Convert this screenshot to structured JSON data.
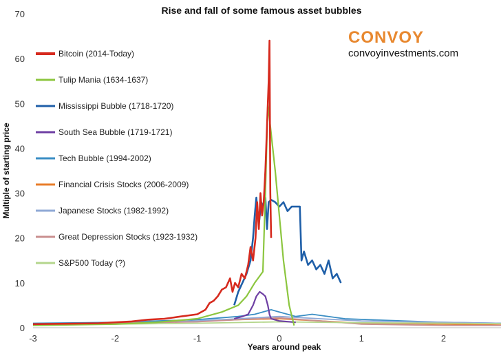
{
  "chart_data": {
    "type": "line",
    "title": "Rise and fall of some famous asset bubbles",
    "xlabel": "Years around peak",
    "ylabel": "Multiple of starting price",
    "xlim": [
      -3,
      2.7
    ],
    "ylim": [
      0,
      70
    ],
    "x_ticks": [
      -3,
      -2,
      -1,
      0,
      1,
      2
    ],
    "y_ticks": [
      0,
      10,
      20,
      30,
      40,
      50,
      60,
      70
    ],
    "grid": false,
    "legend_position": "left",
    "series": [
      {
        "name": "Bitcoin (2014-Today)",
        "color": "#d62a1e",
        "points": [
          [
            -3.0,
            0.8
          ],
          [
            -2.5,
            0.9
          ],
          [
            -2.2,
            1.0
          ],
          [
            -2.0,
            1.2
          ],
          [
            -1.8,
            1.4
          ],
          [
            -1.6,
            1.8
          ],
          [
            -1.4,
            2.0
          ],
          [
            -1.2,
            2.5
          ],
          [
            -1.0,
            3.0
          ],
          [
            -0.9,
            4.0
          ],
          [
            -0.85,
            5.5
          ],
          [
            -0.8,
            6.0
          ],
          [
            -0.75,
            7.0
          ],
          [
            -0.7,
            8.5
          ],
          [
            -0.65,
            9.0
          ],
          [
            -0.6,
            11.0
          ],
          [
            -0.57,
            8.0
          ],
          [
            -0.54,
            10.0
          ],
          [
            -0.5,
            9.0
          ],
          [
            -0.46,
            12.0
          ],
          [
            -0.42,
            11.0
          ],
          [
            -0.38,
            14.0
          ],
          [
            -0.35,
            18.0
          ],
          [
            -0.32,
            15.0
          ],
          [
            -0.29,
            20.0
          ],
          [
            -0.27,
            28.0
          ],
          [
            -0.25,
            22.0
          ],
          [
            -0.23,
            30.0
          ],
          [
            -0.21,
            25.0
          ],
          [
            -0.19,
            28.0
          ],
          [
            -0.17,
            35.0
          ],
          [
            -0.15,
            45.0
          ],
          [
            -0.13,
            55.0
          ],
          [
            -0.12,
            64.0
          ],
          [
            -0.11,
            30.0
          ],
          [
            -0.1,
            20.0
          ]
        ]
      },
      {
        "name": "Tulip Mania (1634-1637)",
        "color": "#8cc63f",
        "points": [
          [
            -3.0,
            0.5
          ],
          [
            -2.0,
            0.8
          ],
          [
            -1.5,
            1.2
          ],
          [
            -1.0,
            2.0
          ],
          [
            -0.7,
            3.5
          ],
          [
            -0.5,
            5.0
          ],
          [
            -0.4,
            7.0
          ],
          [
            -0.3,
            10.0
          ],
          [
            -0.2,
            12.5
          ],
          [
            -0.17,
            30.0
          ],
          [
            -0.14,
            50.0
          ],
          [
            -0.05,
            35.0
          ],
          [
            0.05,
            15.0
          ],
          [
            0.12,
            5.0
          ],
          [
            0.18,
            0.5
          ]
        ]
      },
      {
        "name": "Mississippi Bubble (1718-1720)",
        "color": "#1f5fa8",
        "points": [
          [
            -0.55,
            5.0
          ],
          [
            -0.5,
            8.0
          ],
          [
            -0.45,
            10.0
          ],
          [
            -0.4,
            12.0
          ],
          [
            -0.35,
            15.0
          ],
          [
            -0.32,
            20.0
          ],
          [
            -0.3,
            25.0
          ],
          [
            -0.28,
            29.0
          ],
          [
            -0.25,
            23.0
          ],
          [
            -0.22,
            28.0
          ],
          [
            -0.2,
            27.0
          ],
          [
            -0.17,
            29.0
          ],
          [
            -0.15,
            22.0
          ],
          [
            -0.13,
            28.0
          ],
          [
            -0.1,
            28.5
          ],
          [
            -0.05,
            28.0
          ],
          [
            0.0,
            27.0
          ],
          [
            0.05,
            28.0
          ],
          [
            0.1,
            26.0
          ],
          [
            0.15,
            27.0
          ],
          [
            0.2,
            27.0
          ],
          [
            0.25,
            27.0
          ],
          [
            0.27,
            15.0
          ],
          [
            0.3,
            17.0
          ],
          [
            0.35,
            14.0
          ],
          [
            0.4,
            15.0
          ],
          [
            0.45,
            13.0
          ],
          [
            0.5,
            14.0
          ],
          [
            0.55,
            12.0
          ],
          [
            0.6,
            15.0
          ],
          [
            0.65,
            11.0
          ],
          [
            0.7,
            12.0
          ],
          [
            0.75,
            10.0
          ]
        ]
      },
      {
        "name": "South Sea Bubble (1719-1721)",
        "color": "#6e3fa3",
        "points": [
          [
            -0.55,
            2.0
          ],
          [
            -0.45,
            2.5
          ],
          [
            -0.38,
            3.0
          ],
          [
            -0.32,
            5.0
          ],
          [
            -0.28,
            7.0
          ],
          [
            -0.24,
            8.0
          ],
          [
            -0.2,
            7.5
          ],
          [
            -0.17,
            7.0
          ],
          [
            -0.14,
            5.0
          ],
          [
            -0.12,
            3.0
          ],
          [
            -0.1,
            2.0
          ],
          [
            0.0,
            1.5
          ],
          [
            0.2,
            1.2
          ]
        ]
      },
      {
        "name": "Tech Bubble (1994-2002)",
        "color": "#3a8ec4",
        "points": [
          [
            -3.0,
            1.0
          ],
          [
            -2.0,
            1.2
          ],
          [
            -1.0,
            1.8
          ],
          [
            -0.5,
            2.5
          ],
          [
            -0.3,
            3.0
          ],
          [
            -0.1,
            4.0
          ],
          [
            0.0,
            3.5
          ],
          [
            0.2,
            2.5
          ],
          [
            0.4,
            3.0
          ],
          [
            0.8,
            2.0
          ],
          [
            1.5,
            1.5
          ],
          [
            2.0,
            1.2
          ],
          [
            2.7,
            1.0
          ]
        ]
      },
      {
        "name": "Financial Crisis Stocks (2006-2009)",
        "color": "#e87d2a",
        "points": [
          [
            -3.0,
            0.8
          ],
          [
            -2.0,
            1.0
          ],
          [
            -1.0,
            1.4
          ],
          [
            -0.5,
            1.8
          ],
          [
            0.0,
            2.0
          ],
          [
            0.5,
            1.5
          ],
          [
            1.0,
            1.0
          ],
          [
            2.0,
            0.8
          ],
          [
            2.7,
            0.6
          ]
        ]
      },
      {
        "name": "Japanese Stocks (1982-1992)",
        "color": "#8fa9d6",
        "points": [
          [
            -3.0,
            0.7
          ],
          [
            -2.0,
            1.0
          ],
          [
            -1.0,
            1.5
          ],
          [
            -0.5,
            2.0
          ],
          [
            0.0,
            2.5
          ],
          [
            0.5,
            2.0
          ],
          [
            1.0,
            1.5
          ],
          [
            2.0,
            1.2
          ],
          [
            2.7,
            1.0
          ]
        ]
      },
      {
        "name": "Great Depression Stocks (1923-1932)",
        "color": "#c98f8f",
        "points": [
          [
            -3.0,
            0.8
          ],
          [
            -2.0,
            1.0
          ],
          [
            -1.0,
            1.3
          ],
          [
            -0.5,
            1.8
          ],
          [
            0.0,
            2.2
          ],
          [
            0.5,
            1.5
          ],
          [
            1.0,
            0.8
          ],
          [
            2.0,
            0.5
          ],
          [
            2.7,
            0.5
          ]
        ]
      },
      {
        "name": "S&P500 Today (?)",
        "color": "#b4d68c",
        "points": [
          [
            -3.0,
            0.6
          ],
          [
            -2.0,
            0.8
          ],
          [
            -1.0,
            1.0
          ],
          [
            0.0,
            1.3
          ],
          [
            1.0,
            1.1
          ],
          [
            2.0,
            1.0
          ],
          [
            2.7,
            0.9
          ]
        ]
      }
    ]
  },
  "branding": {
    "name": "CONVOY",
    "url": "convoyinvestments.com",
    "badge_color": "#ffffff",
    "name_color": "#e8882f"
  }
}
